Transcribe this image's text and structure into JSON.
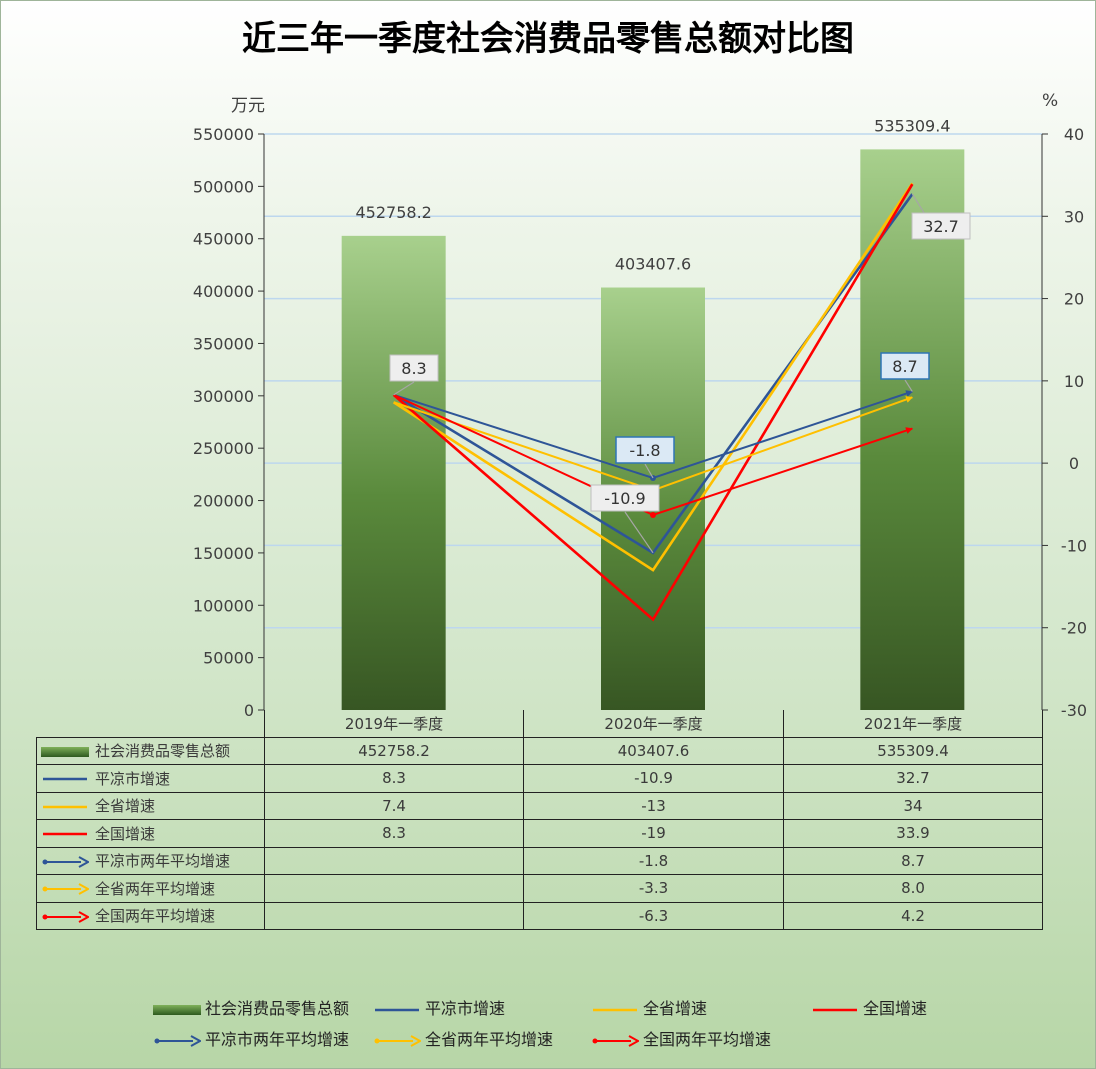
{
  "title": "近三年一季度社会消费品零售总额对比图",
  "left_unit": "万元",
  "right_unit": "%",
  "colors": {
    "bar_top": "#a8d08d",
    "bar_bottom": "#375623",
    "pingliang": "#2e5597",
    "province": "#ffc000",
    "national": "#ff0000",
    "gridline": "#bdd7ee"
  },
  "chart_data": {
    "type": "bar+line",
    "categories": [
      "2019年一季度",
      "2020年一季度",
      "2021年一季度"
    ],
    "left_axis": {
      "unit": "万元",
      "min": 0,
      "max": 550000,
      "step": 50000
    },
    "right_axis": {
      "unit": "%",
      "min": -30,
      "max": 40,
      "step": 10
    },
    "bars": {
      "name": "社会消费品零售总额",
      "values": [
        452758.2,
        403407.6,
        535309.4
      ],
      "labels": [
        "452758.2",
        "403407.6",
        "535309.4"
      ]
    },
    "lines": [
      {
        "name": "平凉市增速",
        "color": "#2e5597",
        "values": [
          8.3,
          -10.9,
          32.7
        ]
      },
      {
        "name": "全省增速",
        "color": "#ffc000",
        "values": [
          7.4,
          -13,
          34
        ]
      },
      {
        "name": "全国增速",
        "color": "#ff0000",
        "values": [
          8.3,
          -19,
          33.9
        ]
      }
    ],
    "arrows": [
      {
        "name": "平凉市两年平均增速",
        "color": "#2e5597",
        "from": 8.3,
        "values": [
          -1.8,
          8.7
        ]
      },
      {
        "name": "全省两年平均增速",
        "color": "#ffc000",
        "from": 7.4,
        "values": [
          -3.3,
          8.0
        ]
      },
      {
        "name": "全国两年平均增速",
        "color": "#ff0000",
        "from": 8.3,
        "values": [
          -6.3,
          4.2
        ]
      }
    ],
    "callouts": [
      {
        "text": "8.3",
        "style": "grey"
      },
      {
        "text": "-10.9",
        "style": "grey"
      },
      {
        "text": "32.7",
        "style": "grey"
      },
      {
        "text": "-1.8",
        "style": "blue"
      },
      {
        "text": "8.7",
        "style": "blue"
      }
    ],
    "legend_position": "bottom"
  },
  "table": {
    "header": [
      "2019年一季度",
      "2020年一季度",
      "2021年一季度"
    ],
    "rows": [
      {
        "label": "社会消费品零售总额",
        "key": "bar",
        "values": [
          "452758.2",
          "403407.6",
          "535309.4"
        ]
      },
      {
        "label": "平凉市增速",
        "key": "line-blue",
        "values": [
          "8.3",
          "-10.9",
          "32.7"
        ]
      },
      {
        "label": "全省增速",
        "key": "line-gold",
        "values": [
          "7.4",
          "-13",
          "34"
        ]
      },
      {
        "label": "全国增速",
        "key": "line-red",
        "values": [
          "8.3",
          "-19",
          "33.9"
        ]
      },
      {
        "label": "平凉市两年平均增速",
        "key": "arrow-blue",
        "values": [
          "",
          "-1.8",
          "8.7"
        ]
      },
      {
        "label": "全省两年平均增速",
        "key": "arrow-gold",
        "values": [
          "",
          "-3.3",
          "8.0"
        ]
      },
      {
        "label": "全国两年平均增速",
        "key": "arrow-red",
        "values": [
          "",
          "-6.3",
          "4.2"
        ]
      }
    ]
  },
  "legend": [
    {
      "label": "社会消费品零售总额",
      "key": "bar"
    },
    {
      "label": "平凉市增速",
      "key": "line-blue"
    },
    {
      "label": "全省增速",
      "key": "line-gold"
    },
    {
      "label": "全国增速",
      "key": "line-red"
    },
    {
      "label": "平凉市两年平均增速",
      "key": "arrow-blue"
    },
    {
      "label": "全省两年平均增速",
      "key": "arrow-gold"
    },
    {
      "label": "全国两年平均增速",
      "key": "arrow-red"
    }
  ]
}
